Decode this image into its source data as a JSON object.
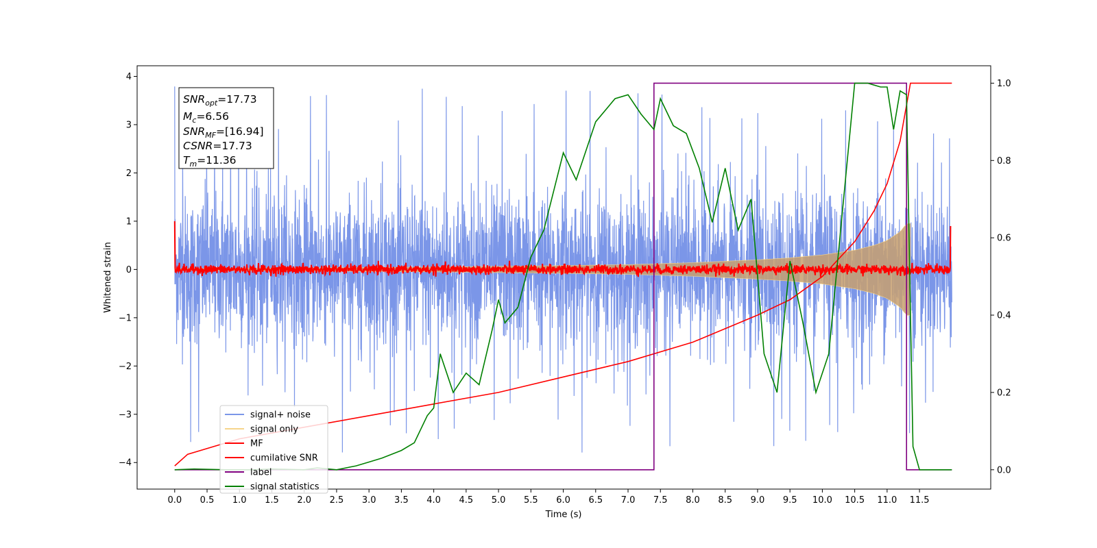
{
  "chart_data": {
    "type": "line",
    "xlabel": "Time (s)",
    "ylabel": "Whitened strain",
    "xlim": [
      -0.58,
      12.6
    ],
    "ylim": [
      -4.55,
      4.22
    ],
    "ylim_right": [
      -0.05,
      1.045
    ],
    "x_ticks": [
      "0.0",
      "0.5",
      "1.0",
      "1.5",
      "2.0",
      "2.5",
      "3.0",
      "3.5",
      "4.0",
      "4.5",
      "5.0",
      "5.5",
      "6.0",
      "6.5",
      "7.0",
      "7.5",
      "8.0",
      "8.5",
      "9.0",
      "9.5",
      "10.0",
      "10.5",
      "11.0",
      "11.5"
    ],
    "y_ticks": [
      "4",
      "3",
      "2",
      "1",
      "0",
      "−1",
      "−2",
      "−3",
      "−4"
    ],
    "y_ticks_right": [
      "1.0",
      "0.8",
      "0.6",
      "0.4",
      "0.2",
      "0.0"
    ],
    "annotation": {
      "snr_opt": "=17.73",
      "mc": "=6.56",
      "snr_mf": "=[16.94]",
      "csnr": "=17.73",
      "tm": "=11.36"
    },
    "legend": {
      "placement": "lower-left",
      "entries": [
        {
          "name": "signal+ noise",
          "color": "#7b96e8"
        },
        {
          "name": "signal only",
          "color": "#f6d58a"
        },
        {
          "name": "MF",
          "color": "#ff0000"
        },
        {
          "name": "cumilative SNR",
          "color": "#ff0000"
        },
        {
          "name": "label",
          "color": "#800080"
        },
        {
          "name": "signal statistics",
          "color": "#008000"
        }
      ]
    },
    "noise": {
      "duration": 12.0,
      "sigma": 0.75,
      "peak_min": 1.8,
      "peak_max": 3.8
    },
    "signal_envelope": {
      "x": [
        0,
        4.0,
        6.0,
        7.0,
        8.0,
        9.0,
        9.5,
        10.0,
        10.5,
        10.8,
        11.0,
        11.2,
        11.3,
        11.36
      ],
      "amp": [
        0.02,
        0.05,
        0.08,
        0.1,
        0.14,
        0.2,
        0.24,
        0.3,
        0.4,
        0.5,
        0.6,
        0.78,
        0.95,
        0.95
      ]
    },
    "mf": {
      "sigma": 0.05,
      "x_start": 0.0,
      "x_end": 11.98,
      "start_value": 1.0,
      "end_value": 0.9
    },
    "cumulative_snr": {
      "x": [
        0.0,
        0.2,
        1.0,
        2.0,
        3.0,
        4.0,
        5.0,
        6.0,
        7.0,
        8.0,
        9.0,
        9.5,
        10.0,
        10.5,
        10.8,
        11.0,
        11.2,
        11.36,
        11.5,
        12.0
      ],
      "y": [
        0.01,
        0.04,
        0.08,
        0.11,
        0.14,
        0.17,
        0.2,
        0.24,
        0.28,
        0.33,
        0.4,
        0.44,
        0.5,
        0.59,
        0.67,
        0.74,
        0.85,
        1.0,
        1.0,
        1.0
      ]
    },
    "label": {
      "x": [
        0.0,
        7.4,
        7.4,
        11.3,
        11.3,
        12.0
      ],
      "y": [
        0,
        0,
        1,
        1,
        0,
        0
      ]
    },
    "signal_statistics": {
      "x": [
        0.0,
        0.3,
        0.8,
        1.2,
        1.5,
        2.0,
        2.2,
        2.5,
        2.8,
        3.0,
        3.2,
        3.5,
        3.7,
        3.9,
        4.0,
        4.1,
        4.3,
        4.5,
        4.7,
        4.9,
        5.0,
        5.1,
        5.3,
        5.5,
        5.7,
        6.0,
        6.2,
        6.5,
        6.8,
        7.0,
        7.2,
        7.4,
        7.5,
        7.7,
        7.9,
        8.1,
        8.3,
        8.5,
        8.7,
        8.9,
        9.1,
        9.3,
        9.5,
        9.7,
        9.9,
        10.1,
        10.3,
        10.5,
        10.7,
        10.9,
        11.0,
        11.1,
        11.2,
        11.3,
        11.35,
        11.4,
        11.5,
        12.0
      ],
      "y": [
        0.0,
        0.002,
        0.0,
        0.0,
        0.002,
        0.0,
        0.005,
        0.0,
        0.01,
        0.02,
        0.03,
        0.05,
        0.07,
        0.14,
        0.16,
        0.3,
        0.2,
        0.25,
        0.22,
        0.36,
        0.44,
        0.38,
        0.42,
        0.55,
        0.62,
        0.82,
        0.75,
        0.9,
        0.96,
        0.97,
        0.92,
        0.88,
        0.96,
        0.89,
        0.87,
        0.78,
        0.64,
        0.78,
        0.62,
        0.7,
        0.3,
        0.2,
        0.54,
        0.38,
        0.2,
        0.3,
        0.65,
        1.0,
        1.0,
        0.99,
        0.99,
        0.88,
        0.98,
        0.97,
        0.5,
        0.06,
        0.0,
        0.0
      ]
    }
  }
}
